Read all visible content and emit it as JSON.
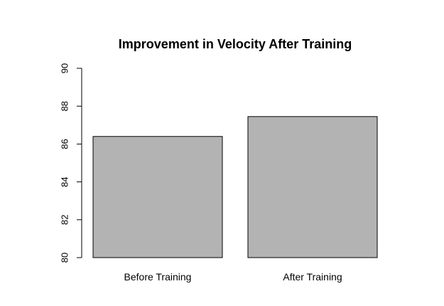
{
  "chart_data": {
    "type": "bar",
    "title": "Improvement in Velocity After Training",
    "xlabel": "",
    "ylabel": "",
    "categories": [
      "Before Training",
      "After Training"
    ],
    "values": [
      86.4,
      87.45
    ],
    "ylim": [
      80,
      90
    ],
    "yticks": [
      "80",
      "82",
      "84",
      "86",
      "88",
      "90"
    ],
    "bar_color": "#b3b3b3",
    "grid": false,
    "legend": "none"
  }
}
